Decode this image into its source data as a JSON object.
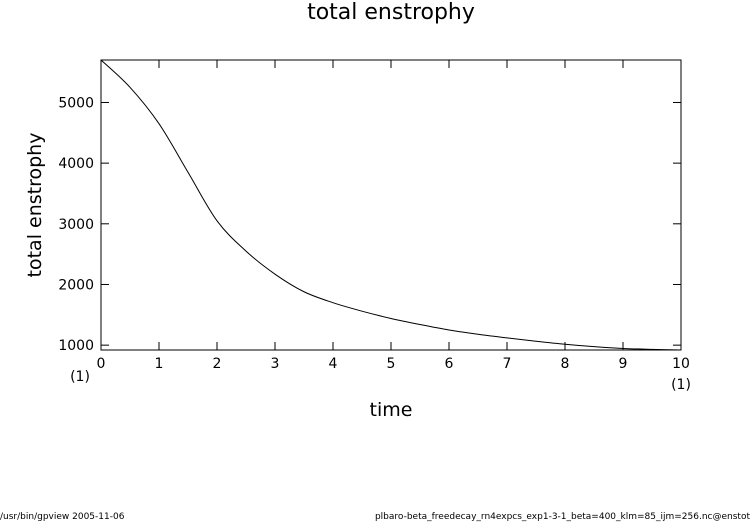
{
  "chart_data": {
    "type": "line",
    "title": "total enstrophy",
    "xlabel": "time",
    "ylabel": "total enstrophy",
    "x_multiplier_label": "(1)",
    "xlim": [
      0,
      10
    ],
    "ylim": [
      920,
      5700
    ],
    "xticks": [
      0,
      1,
      2,
      3,
      4,
      5,
      6,
      7,
      8,
      9,
      10
    ],
    "xtick_labels": [
      "0",
      "1",
      "2",
      "3",
      "4",
      "5",
      "6",
      "7",
      "8",
      "9",
      "10"
    ],
    "yticks": [
      1000,
      2000,
      3000,
      4000,
      5000
    ],
    "ytick_labels": [
      "1000",
      "2000",
      "3000",
      "4000",
      "5000"
    ],
    "grid": false,
    "series": [
      {
        "color": "#000000",
        "x": [
          0,
          0.5,
          1.0,
          1.5,
          2.0,
          2.5,
          3.0,
          3.5,
          4.0,
          4.5,
          5.0,
          5.5,
          6.0,
          6.5,
          7.0,
          7.5,
          8.0,
          8.5,
          9.0,
          9.5,
          10.0
        ],
        "y": [
          5700,
          5250,
          4650,
          3850,
          3050,
          2550,
          2170,
          1880,
          1700,
          1560,
          1440,
          1340,
          1250,
          1180,
          1120,
          1065,
          1015,
          975,
          945,
          930,
          920
        ]
      }
    ]
  },
  "footer": {
    "left": "/usr/bin/gpview  2005-11-06",
    "right": "plbaro-beta_freedecay_rn4expcs_exp1-3-1_beta=400_klm=85_ijm=256.nc@enstot"
  }
}
